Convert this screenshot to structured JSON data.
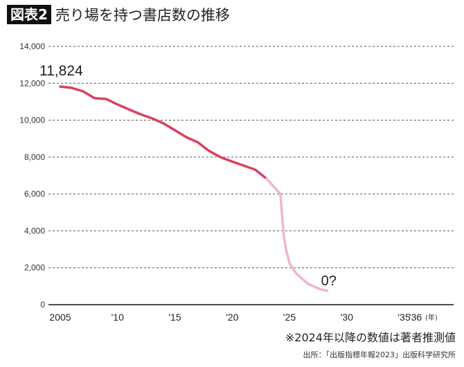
{
  "header": {
    "badge": "図表2",
    "title": "売り場を持つ書店数の推移"
  },
  "chart_data": {
    "type": "line",
    "title": "売り場を持つ書店数の推移",
    "xlabel": "(年)",
    "ylabel": "",
    "xlim": [
      2005,
      2036
    ],
    "ylim": [
      0,
      14000
    ],
    "grid": true,
    "y_ticks": [
      0,
      2000,
      4000,
      6000,
      8000,
      10000,
      12000,
      14000
    ],
    "y_tick_labels": [
      "0",
      "2,000",
      "4,000",
      "6,000",
      "8,000",
      "10,000",
      "12,000",
      "14,000"
    ],
    "x_ticks": [
      2005,
      2010,
      2015,
      2020,
      2025,
      2030,
      2035,
      2036
    ],
    "x_tick_labels": [
      "2005",
      "'10",
      "'15",
      "'20",
      "'25",
      "'30",
      "'35",
      "'36"
    ],
    "series": [
      {
        "color": "#d9405e",
        "x": [
          2005,
          2006,
          2007,
          2008,
          2009,
          2010,
          2011,
          2012,
          2013,
          2014,
          2015,
          2016,
          2017,
          2018,
          2019,
          2020,
          2021,
          2022,
          2023
        ],
        "y": [
          11824,
          11750,
          11560,
          11190,
          11150,
          10850,
          10580,
          10320,
          10100,
          9830,
          9460,
          9080,
          8800,
          8330,
          7990,
          7760,
          7540,
          7320,
          6830
        ]
      },
      {
        "color": "#f2b6c3",
        "x": [
          2023,
          2024.2,
          2024.3,
          2024.5,
          2024.7,
          2025.0,
          2025.6,
          2026.6,
          2027.7,
          2028.3
        ],
        "y": [
          6830,
          6000,
          5250,
          3750,
          3000,
          2250,
          1690,
          1130,
          830,
          750
        ]
      }
    ],
    "annotations": [
      {
        "text": "11,824",
        "x": 2005,
        "y": 11824
      },
      {
        "text": "0?",
        "x": 2028.3,
        "y": 750
      }
    ]
  },
  "footer": {
    "note": "※2024年以降の数値は著者推測値",
    "source": "出所：「出版指標年報2023」出版科学研究所"
  }
}
